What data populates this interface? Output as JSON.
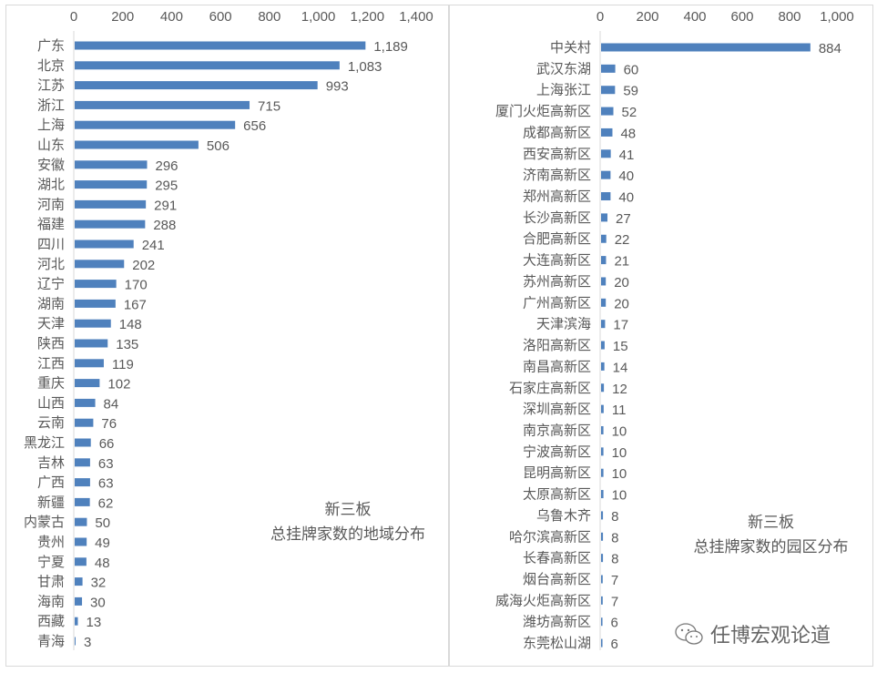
{
  "colors": {
    "bar": "#4f81bd",
    "axis": "#d9d9d9",
    "text": "#595959"
  },
  "chart_data": [
    {
      "type": "bar",
      "orientation": "horizontal",
      "title_line1": "新三板",
      "title_line2": "总挂牌家数的地域分布",
      "xlim": [
        0,
        1400
      ],
      "ticks": [
        "0",
        "200",
        "400",
        "600",
        "800",
        "1,000",
        "1,200",
        "1,400"
      ],
      "tick_values": [
        0,
        200,
        400,
        600,
        800,
        1000,
        1200,
        1400
      ],
      "categories": [
        "广东",
        "北京",
        "江苏",
        "浙江",
        "上海",
        "山东",
        "安徽",
        "湖北",
        "河南",
        "福建",
        "四川",
        "河北",
        "辽宁",
        "湖南",
        "天津",
        "陕西",
        "江西",
        "重庆",
        "山西",
        "云南",
        "黑龙江",
        "吉林",
        "广西",
        "新疆",
        "内蒙古",
        "贵州",
        "宁夏",
        "甘肃",
        "海南",
        "西藏",
        "青海"
      ],
      "values": [
        1189,
        1083,
        993,
        715,
        656,
        506,
        296,
        295,
        291,
        288,
        241,
        202,
        170,
        167,
        148,
        135,
        119,
        102,
        84,
        76,
        66,
        63,
        63,
        62,
        50,
        49,
        48,
        32,
        30,
        13,
        3
      ],
      "labels": [
        "1,189",
        "1,083",
        "993",
        "715",
        "656",
        "506",
        "296",
        "295",
        "291",
        "288",
        "241",
        "202",
        "170",
        "167",
        "148",
        "135",
        "119",
        "102",
        "84",
        "76",
        "66",
        "63",
        "63",
        "62",
        "50",
        "49",
        "48",
        "32",
        "30",
        "13",
        "3"
      ]
    },
    {
      "type": "bar",
      "orientation": "horizontal",
      "title_line1": "新三板",
      "title_line2": "总挂牌家数的园区分布",
      "xlim": [
        0,
        1000
      ],
      "ticks": [
        "0",
        "200",
        "400",
        "600",
        "800",
        "1,000"
      ],
      "tick_values": [
        0,
        200,
        400,
        600,
        800,
        1000
      ],
      "categories": [
        "中关村",
        "武汉东湖",
        "上海张江",
        "厦门火炬高新区",
        "成都高新区",
        "西安高新区",
        "济南高新区",
        "郑州高新区",
        "长沙高新区",
        "合肥高新区",
        "大连高新区",
        "苏州高新区",
        "广州高新区",
        "天津滨海",
        "洛阳高新区",
        "南昌高新区",
        "石家庄高新区",
        "深圳高新区",
        "南京高新区",
        "宁波高新区",
        "昆明高新区",
        "太原高新区",
        "乌鲁木齐",
        "哈尔滨高新区",
        "长春高新区",
        "烟台高新区",
        "威海火炬高新区",
        "潍坊高新区",
        "东莞松山湖"
      ],
      "values": [
        884,
        60,
        59,
        52,
        48,
        41,
        40,
        40,
        27,
        22,
        21,
        20,
        20,
        17,
        15,
        14,
        12,
        11,
        10,
        10,
        10,
        10,
        8,
        8,
        8,
        7,
        7,
        6,
        6
      ],
      "labels": [
        "884",
        "60",
        "59",
        "52",
        "48",
        "41",
        "40",
        "40",
        "27",
        "22",
        "21",
        "20",
        "20",
        "17",
        "15",
        "14",
        "12",
        "11",
        "10",
        "10",
        "10",
        "10",
        "8",
        "8",
        "8",
        "7",
        "7",
        "6",
        "6"
      ]
    }
  ],
  "watermark": "任博宏观论道"
}
